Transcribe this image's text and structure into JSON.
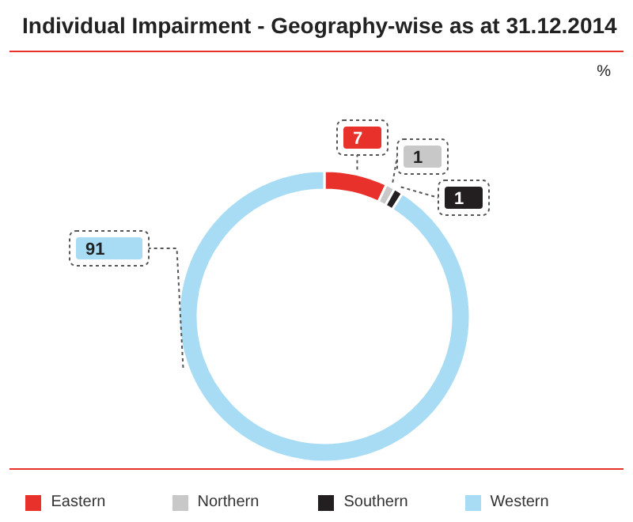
{
  "chart_data": {
    "type": "donut",
    "title": "Individual Impairment - Geography-wise as at 31.12.2014",
    "categories": [
      "Eastern",
      "Northern",
      "Southern",
      "Western"
    ],
    "values": [
      7,
      1,
      1,
      91
    ],
    "colors": [
      "#e8312a",
      "#c8c8c8",
      "#231f20",
      "#a8dcf5"
    ],
    "data_labels": true,
    "legend": "bottom",
    "annotations": [
      "%"
    ]
  }
}
